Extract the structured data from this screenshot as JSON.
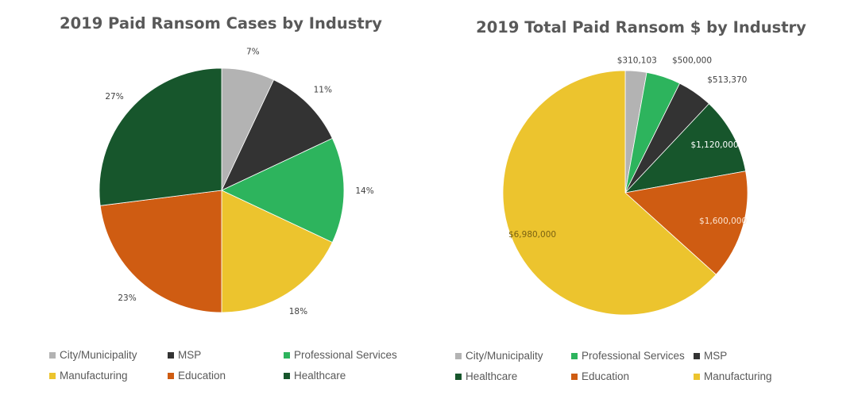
{
  "chart_data": [
    {
      "type": "pie",
      "title": "2019 Paid Ransom Cases by Industry",
      "unit": "%",
      "slices": [
        {
          "name": "City/Municipality",
          "value": 7,
          "label": "7%",
          "color": "#b3b3b3"
        },
        {
          "name": "MSP",
          "value": 11,
          "label": "11%",
          "color": "#333333"
        },
        {
          "name": "Professional Services",
          "value": 14,
          "label": "14%",
          "color": "#2db45d"
        },
        {
          "name": "Manufacturing",
          "value": 18,
          "label": "18%",
          "color": "#ecc42e"
        },
        {
          "name": "Education",
          "value": 23,
          "label": "23%",
          "color": "#cf5c12"
        },
        {
          "name": "Healthcare",
          "value": 27,
          "label": "27%",
          "color": "#17562c"
        }
      ],
      "legend": [
        [
          "City/Municipality",
          "MSP",
          "Professional Services"
        ],
        [
          "Manufacturing",
          "Education",
          "Healthcare"
        ]
      ],
      "legend_position": "bottom"
    },
    {
      "type": "pie",
      "title": "2019 Total Paid Ransom $ by Industry",
      "unit": "$",
      "slices": [
        {
          "name": "City/Municipality",
          "value": 310103,
          "label": "$310,103",
          "color": "#b3b3b3"
        },
        {
          "name": "Professional Services",
          "value": 500000,
          "label": "$500,000",
          "color": "#2db45d"
        },
        {
          "name": "MSP",
          "value": 513370,
          "label": "$513,370",
          "color": "#333333"
        },
        {
          "name": "Healthcare",
          "value": 1120000,
          "label": "$1,120,000",
          "color": "#17562c"
        },
        {
          "name": "Education",
          "value": 1600000,
          "label": "$1,600,000",
          "color": "#cf5c12"
        },
        {
          "name": "Manufacturing",
          "value": 6980000,
          "label": "$6,980,000",
          "color": "#ecc42e"
        }
      ],
      "legend": [
        [
          "City/Municipality",
          "Professional Services",
          "MSP"
        ],
        [
          "Healthcare",
          "Education",
          "Manufacturing"
        ]
      ],
      "legend_position": "bottom"
    }
  ]
}
